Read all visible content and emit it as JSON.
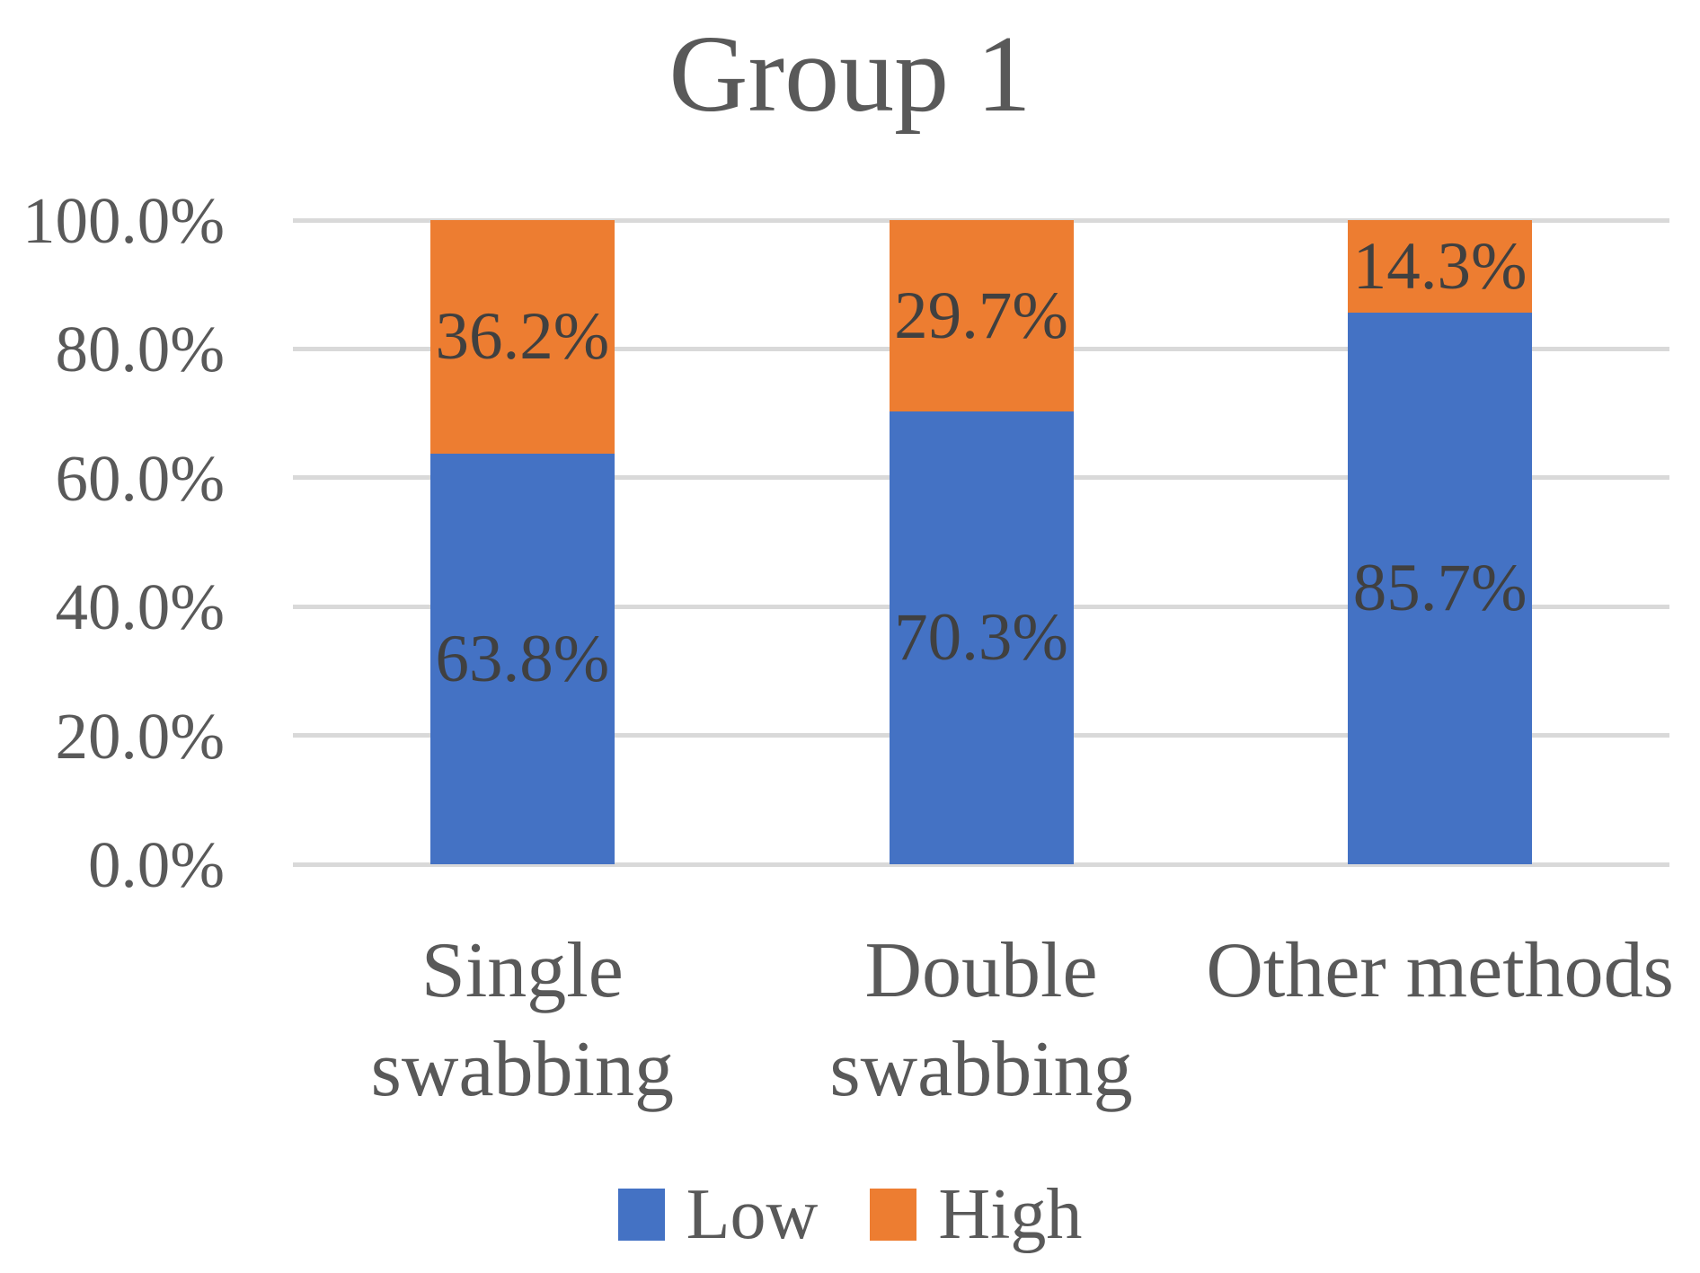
{
  "chart_data": {
    "type": "bar",
    "stacked": true,
    "orientation": "vertical",
    "title": "Group 1",
    "categories": [
      "Single swabbing",
      "Double swabbing",
      "Other methods"
    ],
    "category_lines": [
      [
        "Single",
        "swabbing"
      ],
      [
        "Double",
        "swabbing"
      ],
      [
        "Other methods"
      ]
    ],
    "series": [
      {
        "name": "Low",
        "color": "#4472C4",
        "values": [
          63.8,
          70.3,
          85.7
        ],
        "data_labels": [
          "63.8%",
          "70.3%",
          "85.7%"
        ]
      },
      {
        "name": "High",
        "color": "#ED7D31",
        "values": [
          36.2,
          29.7,
          14.3
        ],
        "data_labels": [
          "36.2%",
          "29.7%",
          "14.3%"
        ]
      }
    ],
    "y_axis": {
      "min": 0,
      "max": 100,
      "tick_step": 20,
      "tick_labels": [
        "0.0%",
        "20.0%",
        "40.0%",
        "60.0%",
        "80.0%",
        "100.0%"
      ],
      "unit": "%"
    },
    "legend": {
      "position": "bottom",
      "entries": [
        "Low",
        "High"
      ]
    },
    "grid": true,
    "colors": {
      "low": "#4472C4",
      "high": "#ED7D31",
      "gridline": "#D9D9D9",
      "axis_text": "#595959",
      "data_label_text": "#404040",
      "title_text": "#595959",
      "background": "#FFFFFF"
    }
  }
}
